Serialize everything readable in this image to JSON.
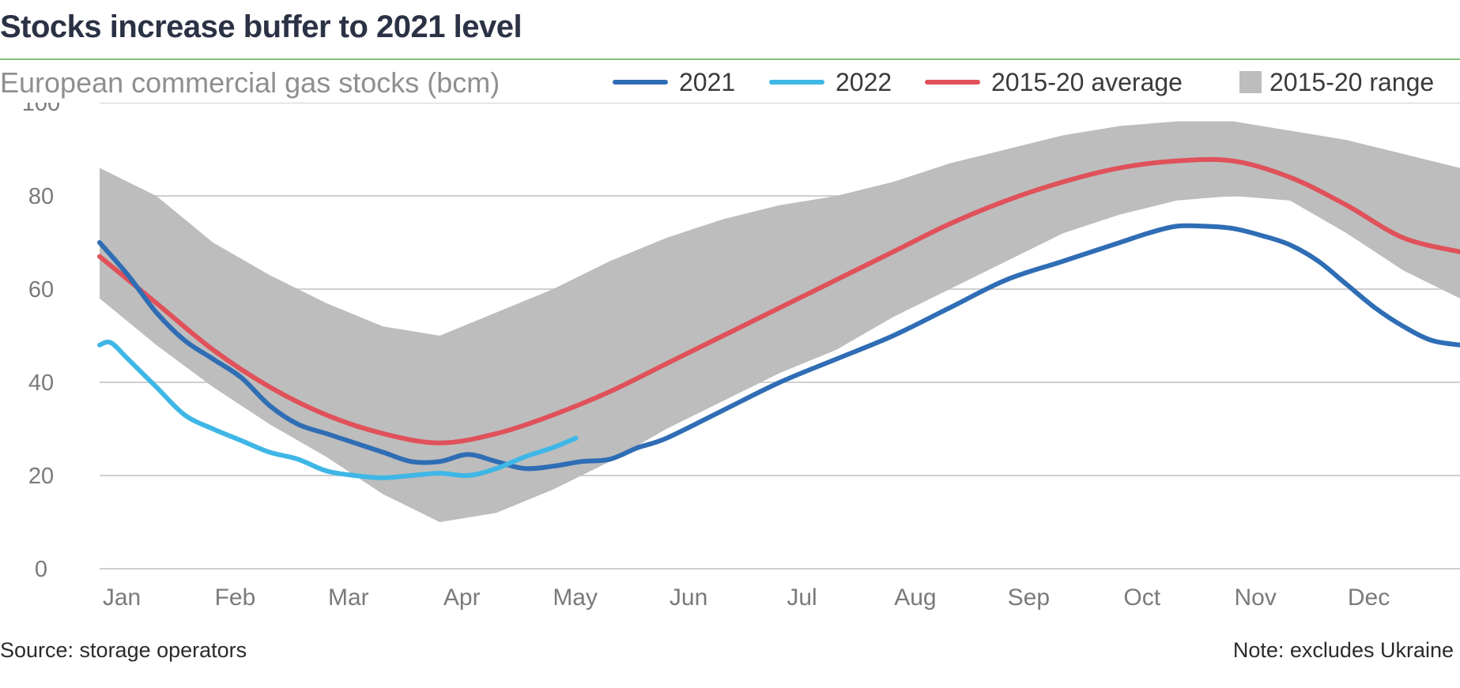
{
  "title": "Stocks increase buffer to 2021 level",
  "subtitle": "European commercial gas stocks (bcm)",
  "source": "Source: storage operators",
  "note": "Note: excludes Ukraine",
  "colors": {
    "title": "#2b3245",
    "title_rule": "#7cc47a",
    "series_2021": "#2f6db5",
    "series_2022": "#3fb7e6",
    "series_avg": "#e0515a",
    "range": "#bdbdbd",
    "grid": "#cfcfcf",
    "tick_text": "#7a7a7a"
  },
  "chart_data": {
    "type": "line",
    "title": "Stocks increase buffer to 2021 level",
    "subtitle": "European commercial gas stocks (bcm)",
    "xlabel": "",
    "ylabel": "",
    "ylim": [
      0,
      100
    ],
    "yticks": [
      0,
      20,
      40,
      60,
      80,
      100
    ],
    "grid": true,
    "legend_position": "top-right",
    "months": [
      "Jan",
      "Feb",
      "Mar",
      "Apr",
      "May",
      "Jun",
      "Jul",
      "Aug",
      "Sep",
      "Oct",
      "Nov",
      "Dec"
    ],
    "x_unit": "month (1 = start of January)",
    "range": {
      "name": "2015-20 range",
      "x": [
        1.0,
        1.5,
        2.0,
        2.5,
        3.0,
        3.5,
        4.0,
        4.5,
        5.0,
        5.5,
        6.0,
        6.5,
        7.0,
        7.5,
        8.0,
        8.5,
        9.0,
        9.5,
        10.0,
        10.5,
        11.0,
        11.5,
        12.0,
        12.5,
        13.0
      ],
      "low": [
        58,
        48,
        39,
        31,
        24,
        16,
        10,
        12,
        17,
        23,
        30,
        36,
        42,
        47,
        54,
        60,
        66,
        72,
        76,
        79,
        80,
        79,
        72,
        64,
        58
      ],
      "high": [
        86,
        80,
        70,
        63,
        57,
        52,
        50,
        55,
        60,
        66,
        71,
        75,
        78,
        80,
        83,
        87,
        90,
        93,
        95,
        96,
        96,
        94,
        92,
        89,
        86
      ]
    },
    "series": [
      {
        "name": "2015-20 average",
        "x": [
          1.0,
          1.5,
          2.0,
          2.5,
          3.0,
          3.5,
          4.0,
          4.5,
          5.0,
          5.5,
          6.0,
          6.5,
          7.0,
          7.5,
          8.0,
          8.5,
          9.0,
          9.5,
          10.0,
          10.5,
          11.0,
          11.5,
          12.0,
          12.5,
          13.0
        ],
        "values": [
          67,
          57,
          47,
          39,
          33,
          29,
          27,
          29,
          33,
          38,
          44,
          50,
          56,
          62,
          68,
          74,
          79,
          83,
          86,
          87.5,
          87.5,
          84,
          78,
          71,
          68
        ]
      },
      {
        "name": "2021",
        "x": [
          1.0,
          1.25,
          1.5,
          1.75,
          2.0,
          2.25,
          2.5,
          2.75,
          3.0,
          3.25,
          3.5,
          3.75,
          4.0,
          4.25,
          4.5,
          4.75,
          5.0,
          5.25,
          5.5,
          5.75,
          6.0,
          6.5,
          7.0,
          7.5,
          8.0,
          8.5,
          9.0,
          9.5,
          10.0,
          10.25,
          10.5,
          10.75,
          11.0,
          11.25,
          11.5,
          11.75,
          12.0,
          12.25,
          12.5,
          12.75,
          13.0
        ],
        "values": [
          70,
          63,
          55,
          49,
          45,
          41,
          35,
          31,
          29,
          27,
          25,
          23,
          23,
          24.5,
          23,
          21.5,
          22,
          23,
          23.5,
          26,
          28,
          34,
          40,
          45,
          50,
          56,
          62,
          66,
          70,
          72,
          73.5,
          73.5,
          73,
          71.5,
          69.5,
          66,
          61,
          56,
          52,
          49,
          48
        ]
      },
      {
        "name": "2022",
        "x": [
          1.0,
          1.1,
          1.25,
          1.5,
          1.75,
          2.0,
          2.25,
          2.5,
          2.75,
          3.0,
          3.25,
          3.5,
          3.75,
          4.0,
          4.25,
          4.5,
          4.75,
          5.0,
          5.2
        ],
        "values": [
          48,
          48.5,
          45,
          39,
          33,
          30,
          27.5,
          25,
          23.5,
          21,
          20,
          19.5,
          20,
          20.5,
          20,
          21.5,
          24,
          26,
          28
        ]
      }
    ]
  }
}
